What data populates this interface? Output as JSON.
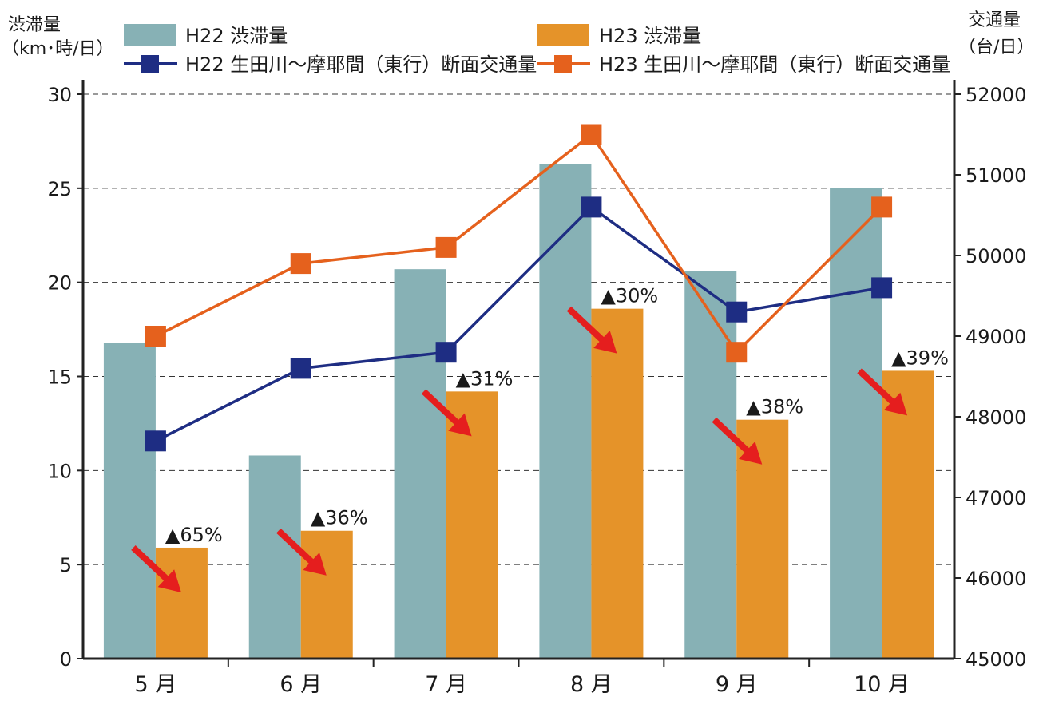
{
  "colors": {
    "h22_bar": "#87b1b5",
    "h23_bar": "#e59329",
    "h22_line": "#1e2d83",
    "h23_line": "#e5611d",
    "arrow": "#e51e1e"
  },
  "chart_data": {
    "type": "bar",
    "categories": [
      "5 月",
      "6 月",
      "7 月",
      "8 月",
      "9 月",
      "10 月"
    ],
    "y_left": {
      "label_line1": "渋滞量",
      "label_line2": "（km･時/日）",
      "lim": [
        0,
        30
      ],
      "ticks": [
        "0",
        "5",
        "10",
        "15",
        "20",
        "25",
        "30"
      ]
    },
    "y_right": {
      "label_line1": "交通量",
      "label_line2": "（台/日）",
      "lim": [
        45000,
        52000
      ],
      "ticks": [
        "45000",
        "46000",
        "47000",
        "48000",
        "49000",
        "50000",
        "51000",
        "52000"
      ]
    },
    "grid": "dashed horizontal",
    "legend_position": "top",
    "bar_series": [
      {
        "name": "H22 渋滞量",
        "axis": "left",
        "values": [
          16.8,
          10.8,
          20.7,
          26.3,
          20.6,
          25.0
        ]
      },
      {
        "name": "H23 渋滞量",
        "axis": "left",
        "values": [
          5.9,
          6.8,
          14.2,
          18.6,
          12.7,
          15.3
        ]
      }
    ],
    "line_series": [
      {
        "name": "H22 生田川～摩耶間（東行）断面交通量",
        "axis": "right",
        "values": [
          47700,
          48600,
          48800,
          50600,
          49300,
          49600
        ]
      },
      {
        "name": "H23 生田川～摩耶間（東行）断面交通量",
        "axis": "right",
        "values": [
          49000,
          49900,
          50100,
          51500,
          48800,
          50600
        ]
      }
    ],
    "annotations": [
      "▲65%",
      "▲36%",
      "▲31%",
      "▲30%",
      "▲38%",
      "▲39%"
    ]
  }
}
